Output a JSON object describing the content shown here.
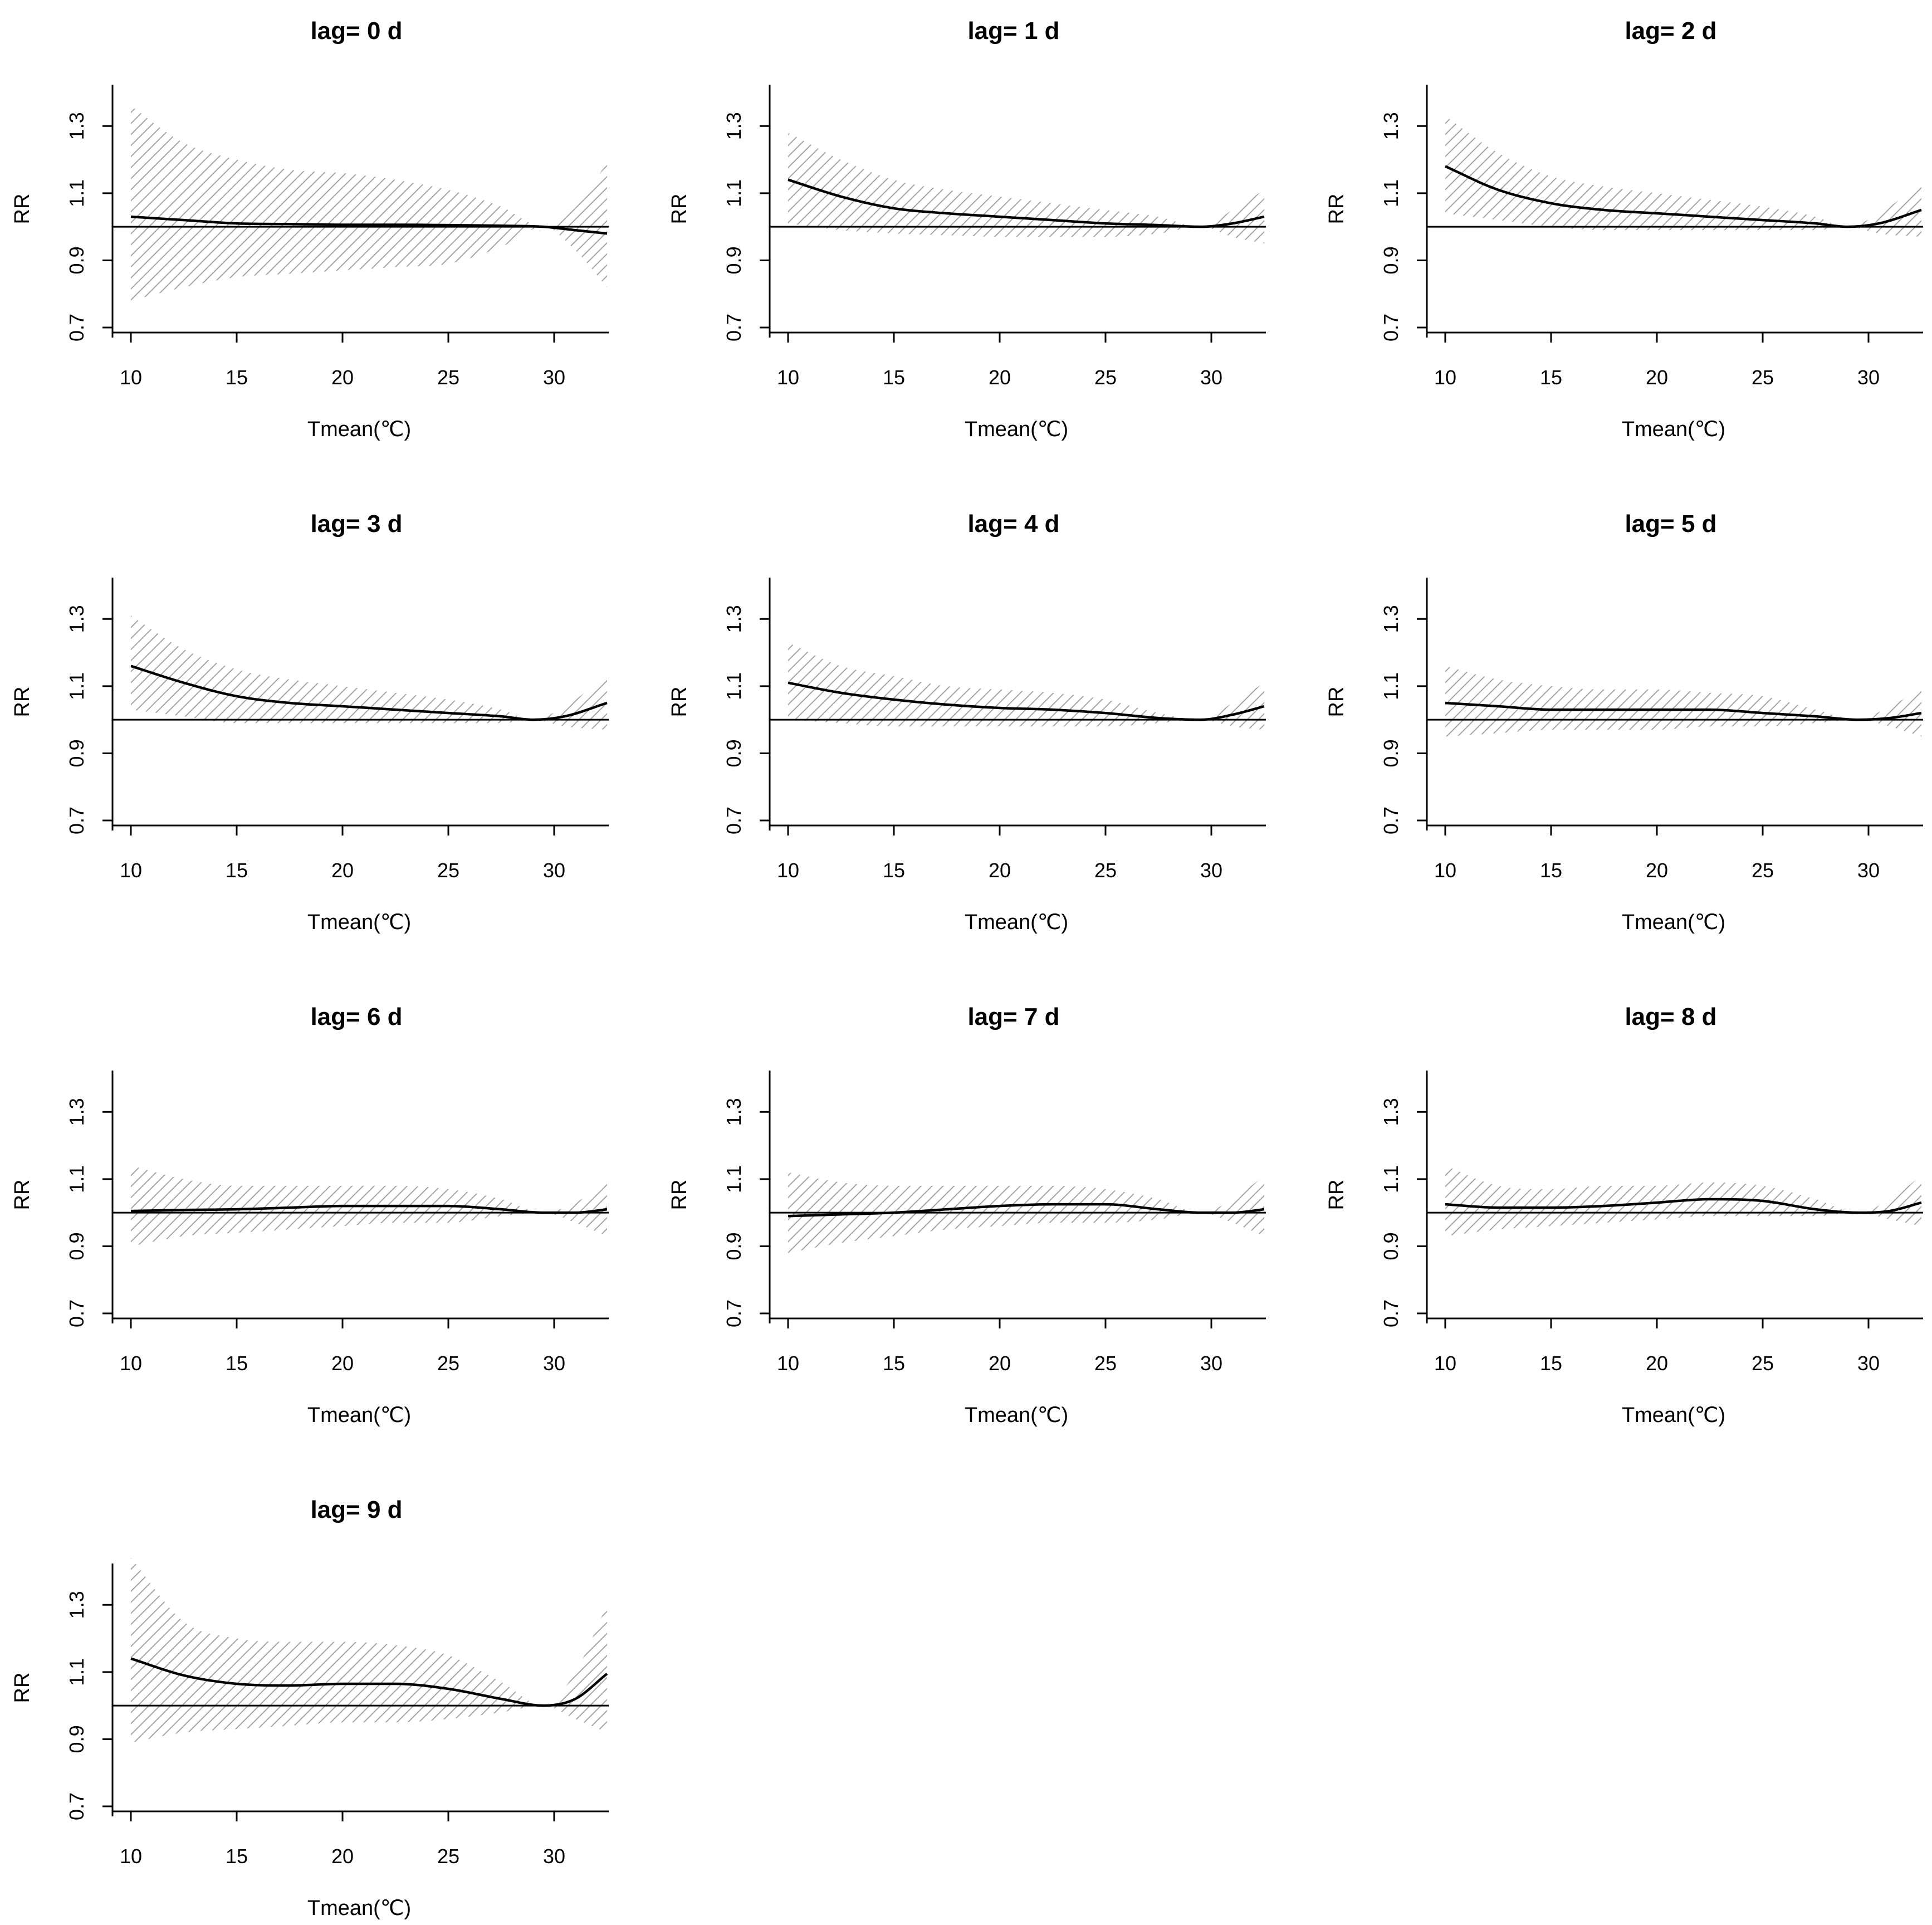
{
  "chart_data": {
    "type": "line",
    "layout": "small-multiples",
    "xlim": [
      10,
      32.5
    ],
    "ylim": [
      0.7,
      1.4
    ],
    "x_ticks": [
      10,
      15,
      20,
      25,
      30
    ],
    "y_ticks": [
      0.7,
      0.9,
      1.1,
      1.3
    ],
    "x_tick_labels": [
      "10",
      "15",
      "20",
      "25",
      "30"
    ],
    "y_tick_labels": [
      "0.7",
      "0.9",
      "1.1",
      "1.3"
    ],
    "xlabel": "Tmean(℃)",
    "ylabel": "RR",
    "reference_line": 1.0,
    "panels": [
      {
        "title": "lag= 0 d",
        "x": [
          10,
          12.5,
          15,
          17.5,
          20,
          22.5,
          25,
          27.5,
          29.5,
          31,
          32.5
        ],
        "rr": [
          1.03,
          1.02,
          1.01,
          1.008,
          1.006,
          1.006,
          1.005,
          1.003,
          1.0,
          0.99,
          0.98
        ],
        "lower": [
          0.78,
          0.82,
          0.85,
          0.86,
          0.87,
          0.88,
          0.89,
          0.94,
          1.0,
          0.93,
          0.82
        ],
        "upper": [
          1.36,
          1.25,
          1.2,
          1.17,
          1.16,
          1.14,
          1.11,
          1.06,
          1.0,
          1.06,
          1.19
        ]
      },
      {
        "title": "lag= 1 d",
        "x": [
          10,
          12.5,
          15,
          17.5,
          20,
          22.5,
          25,
          27.5,
          29.5,
          31,
          32.5
        ],
        "rr": [
          1.14,
          1.09,
          1.055,
          1.04,
          1.03,
          1.02,
          1.01,
          1.005,
          1.0,
          1.01,
          1.03
        ],
        "lower": [
          1.01,
          0.99,
          0.98,
          0.975,
          0.97,
          0.97,
          0.97,
          0.98,
          1.0,
          0.97,
          0.95
        ],
        "upper": [
          1.28,
          1.2,
          1.14,
          1.11,
          1.09,
          1.07,
          1.05,
          1.03,
          1.0,
          1.05,
          1.11
        ]
      },
      {
        "title": "lag= 2 d",
        "x": [
          10,
          12.5,
          15,
          17.5,
          20,
          22.5,
          25,
          27.5,
          29,
          30.5,
          32.5
        ],
        "rr": [
          1.18,
          1.11,
          1.07,
          1.05,
          1.04,
          1.03,
          1.02,
          1.01,
          1.0,
          1.01,
          1.05
        ],
        "lower": [
          1.04,
          1.02,
          1.0,
          0.99,
          0.99,
          0.99,
          0.99,
          0.99,
          1.0,
          0.98,
          0.97
        ],
        "upper": [
          1.33,
          1.22,
          1.15,
          1.12,
          1.1,
          1.08,
          1.06,
          1.03,
          1.0,
          1.04,
          1.13
        ]
      },
      {
        "title": "lag= 3 d",
        "x": [
          10,
          12.5,
          15,
          17.5,
          20,
          22.5,
          25,
          27.5,
          29,
          30.5,
          32.5
        ],
        "rr": [
          1.16,
          1.11,
          1.07,
          1.05,
          1.04,
          1.03,
          1.02,
          1.01,
          1.0,
          1.01,
          1.05
        ],
        "lower": [
          1.03,
          1.01,
          0.99,
          0.99,
          0.99,
          0.99,
          0.99,
          0.99,
          1.0,
          0.98,
          0.97
        ],
        "upper": [
          1.31,
          1.21,
          1.15,
          1.12,
          1.1,
          1.08,
          1.06,
          1.03,
          1.0,
          1.04,
          1.13
        ]
      },
      {
        "title": "lag= 4 d",
        "x": [
          10,
          12.5,
          15,
          17.5,
          20,
          22.5,
          25,
          27.5,
          29.5,
          31,
          32.5
        ],
        "rr": [
          1.11,
          1.08,
          1.06,
          1.045,
          1.035,
          1.03,
          1.02,
          1.005,
          1.0,
          1.015,
          1.04
        ],
        "lower": [
          1.0,
          0.99,
          0.98,
          0.98,
          0.98,
          0.98,
          0.98,
          0.99,
          1.0,
          0.98,
          0.97
        ],
        "upper": [
          1.23,
          1.16,
          1.13,
          1.1,
          1.09,
          1.08,
          1.06,
          1.02,
          1.0,
          1.05,
          1.11
        ]
      },
      {
        "title": "lag= 5 d",
        "x": [
          10,
          12.5,
          15,
          17.5,
          20,
          22.5,
          25,
          27.5,
          29.5,
          31,
          32.5
        ],
        "rr": [
          1.05,
          1.04,
          1.03,
          1.03,
          1.03,
          1.03,
          1.02,
          1.01,
          1.0,
          1.005,
          1.02
        ],
        "lower": [
          0.95,
          0.96,
          0.97,
          0.97,
          0.97,
          0.98,
          0.98,
          0.99,
          1.0,
          0.98,
          0.95
        ],
        "upper": [
          1.16,
          1.12,
          1.1,
          1.09,
          1.09,
          1.08,
          1.07,
          1.03,
          1.0,
          1.04,
          1.09
        ]
      },
      {
        "title": "lag= 6 d",
        "x": [
          10,
          12.5,
          15,
          17.5,
          20,
          22.5,
          25,
          27.5,
          29.5,
          31,
          32.5
        ],
        "rr": [
          1.005,
          1.008,
          1.01,
          1.015,
          1.02,
          1.02,
          1.02,
          1.01,
          1.0,
          1.0,
          1.01
        ],
        "lower": [
          0.9,
          0.93,
          0.94,
          0.95,
          0.96,
          0.97,
          0.97,
          0.99,
          1.0,
          0.97,
          0.93
        ],
        "upper": [
          1.14,
          1.1,
          1.08,
          1.08,
          1.08,
          1.08,
          1.07,
          1.04,
          1.0,
          1.03,
          1.09
        ]
      },
      {
        "title": "lag= 7 d",
        "x": [
          10,
          12.5,
          15,
          17.5,
          20,
          22.5,
          25,
          27.5,
          29.5,
          31,
          32.5
        ],
        "rr": [
          0.99,
          0.995,
          1.0,
          1.01,
          1.02,
          1.025,
          1.025,
          1.01,
          1.0,
          1.0,
          1.01
        ],
        "lower": [
          0.88,
          0.91,
          0.93,
          0.95,
          0.96,
          0.97,
          0.97,
          0.98,
          1.0,
          0.97,
          0.93
        ],
        "upper": [
          1.12,
          1.09,
          1.08,
          1.08,
          1.08,
          1.08,
          1.07,
          1.04,
          1.0,
          1.04,
          1.11
        ]
      },
      {
        "title": "lag= 8 d",
        "x": [
          10,
          12.5,
          15,
          17.5,
          20,
          22.5,
          25,
          27.5,
          29.5,
          31,
          32.5
        ],
        "rr": [
          1.025,
          1.015,
          1.015,
          1.02,
          1.03,
          1.04,
          1.035,
          1.01,
          1.0,
          1.005,
          1.03
        ],
        "lower": [
          0.93,
          0.95,
          0.96,
          0.97,
          0.98,
          0.99,
          0.99,
          0.99,
          1.0,
          0.98,
          0.96
        ],
        "upper": [
          1.14,
          1.08,
          1.07,
          1.08,
          1.08,
          1.09,
          1.08,
          1.04,
          1.0,
          1.04,
          1.11
        ]
      },
      {
        "title": "lag= 9 d",
        "x": [
          10,
          12.5,
          15,
          17.5,
          20,
          22.5,
          25,
          27.5,
          29.5,
          31,
          32.5
        ],
        "rr": [
          1.14,
          1.09,
          1.065,
          1.06,
          1.065,
          1.065,
          1.05,
          1.02,
          1.0,
          1.02,
          1.095
        ],
        "lower": [
          0.89,
          0.92,
          0.93,
          0.94,
          0.95,
          0.95,
          0.96,
          0.98,
          1.0,
          0.96,
          0.92
        ],
        "upper": [
          1.44,
          1.25,
          1.2,
          1.19,
          1.19,
          1.18,
          1.15,
          1.07,
          1.0,
          1.1,
          1.3
        ]
      }
    ]
  }
}
